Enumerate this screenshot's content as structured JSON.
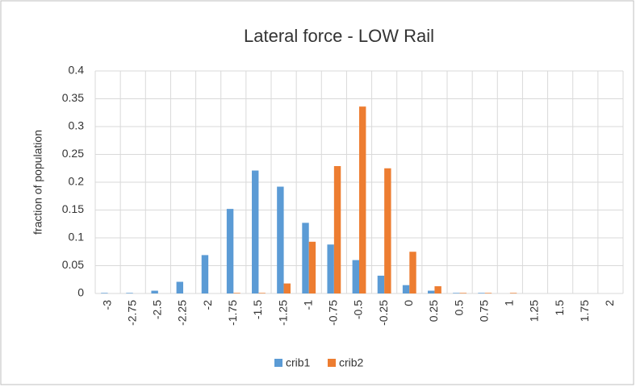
{
  "chart_data": {
    "type": "bar",
    "title": "Lateral force - LOW Rail",
    "y_label": "fraction of population",
    "categories": [
      "-3",
      "-2.75",
      "-2.5",
      "-2.25",
      "-2",
      "-1.75",
      "-1.5",
      "-1.25",
      "-1",
      "-0.75",
      "-0.5",
      "-0.25",
      "0",
      "0.25",
      "0.5",
      "0.75",
      "1",
      "1.25",
      "1.5",
      "1.75",
      "2"
    ],
    "series": [
      {
        "name": "crib1",
        "color": "#5b9bd5",
        "values": [
          0.001,
          0.001,
          0.005,
          0.021,
          0.069,
          0.152,
          0.221,
          0.192,
          0.127,
          0.088,
          0.06,
          0.032,
          0.015,
          0.005,
          0.001,
          0.001,
          0,
          0,
          0,
          0,
          0
        ]
      },
      {
        "name": "crib2",
        "color": "#ed7d31",
        "values": [
          0,
          0,
          0,
          0,
          0,
          0.001,
          0.001,
          0.018,
          0.093,
          0.229,
          0.336,
          0.225,
          0.075,
          0.013,
          0.001,
          0.001,
          0.001,
          0,
          0,
          0,
          0
        ]
      }
    ],
    "ylim": [
      0,
      0.4
    ],
    "yticks": [
      0,
      0.05,
      0.1,
      0.15,
      0.2,
      0.25,
      0.3,
      0.35,
      0.4
    ],
    "grid": true,
    "legend": "bottom"
  }
}
